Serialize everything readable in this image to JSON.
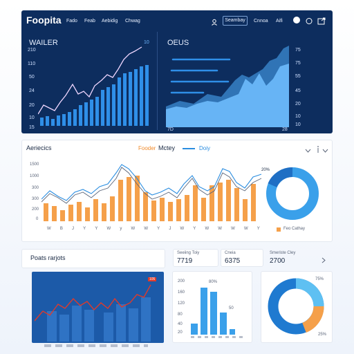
{
  "header": {
    "logo": "Foopita",
    "nav": [
      "Fado",
      "Feab",
      "Aebidig",
      "Chwag"
    ],
    "search_label": "Seambay",
    "links": [
      "Cnnoa",
      "Aifi"
    ]
  },
  "panel_left": {
    "title": "WAILER",
    "ticks": [
      "210",
      "110",
      "50",
      "24",
      "20",
      "10",
      "15"
    ],
    "peak_label": "10"
  },
  "panel_right": {
    "title": "OEUS",
    "ticks": [
      "75",
      "75",
      "55",
      "45",
      "20",
      "10",
      "10"
    ],
    "bottom_ticks": [
      "7D",
      "28"
    ]
  },
  "middle": {
    "title": "Aeriecics",
    "legend": [
      "Fooder",
      "Mctey",
      "Doiy"
    ],
    "y_ticks": [
      "1500",
      "1000",
      "300",
      "300",
      "200",
      "0"
    ],
    "x_ticks": [
      "W",
      "B",
      "J",
      "Y",
      "Y",
      "W",
      "y",
      "W",
      "W",
      "Y",
      "J",
      "W",
      "Y",
      "W",
      "W",
      "W",
      "W",
      "Y"
    ],
    "donut_pct": "20%",
    "donut_legend": "Feo Cathay"
  },
  "bottom": {
    "title": "Poats rarjots",
    "stats": [
      {
        "label": "Seeiing Toiy",
        "value": "7719"
      },
      {
        "label": "Cneia",
        "value": "6375"
      },
      {
        "label": "Smeriste Cley",
        "value": "2700"
      }
    ],
    "line_badge": "105",
    "bar_ticks": [
      "200",
      "160",
      "120",
      "80",
      "40",
      "20"
    ],
    "bar_labels": [
      "80%",
      "50"
    ],
    "donut_label": "75%",
    "donut_label2": "25%"
  },
  "colors": {
    "navy": "#0d2d5e",
    "blue": "#2a8de0",
    "orange": "#f5a04a",
    "red": "#e03a2a"
  }
}
